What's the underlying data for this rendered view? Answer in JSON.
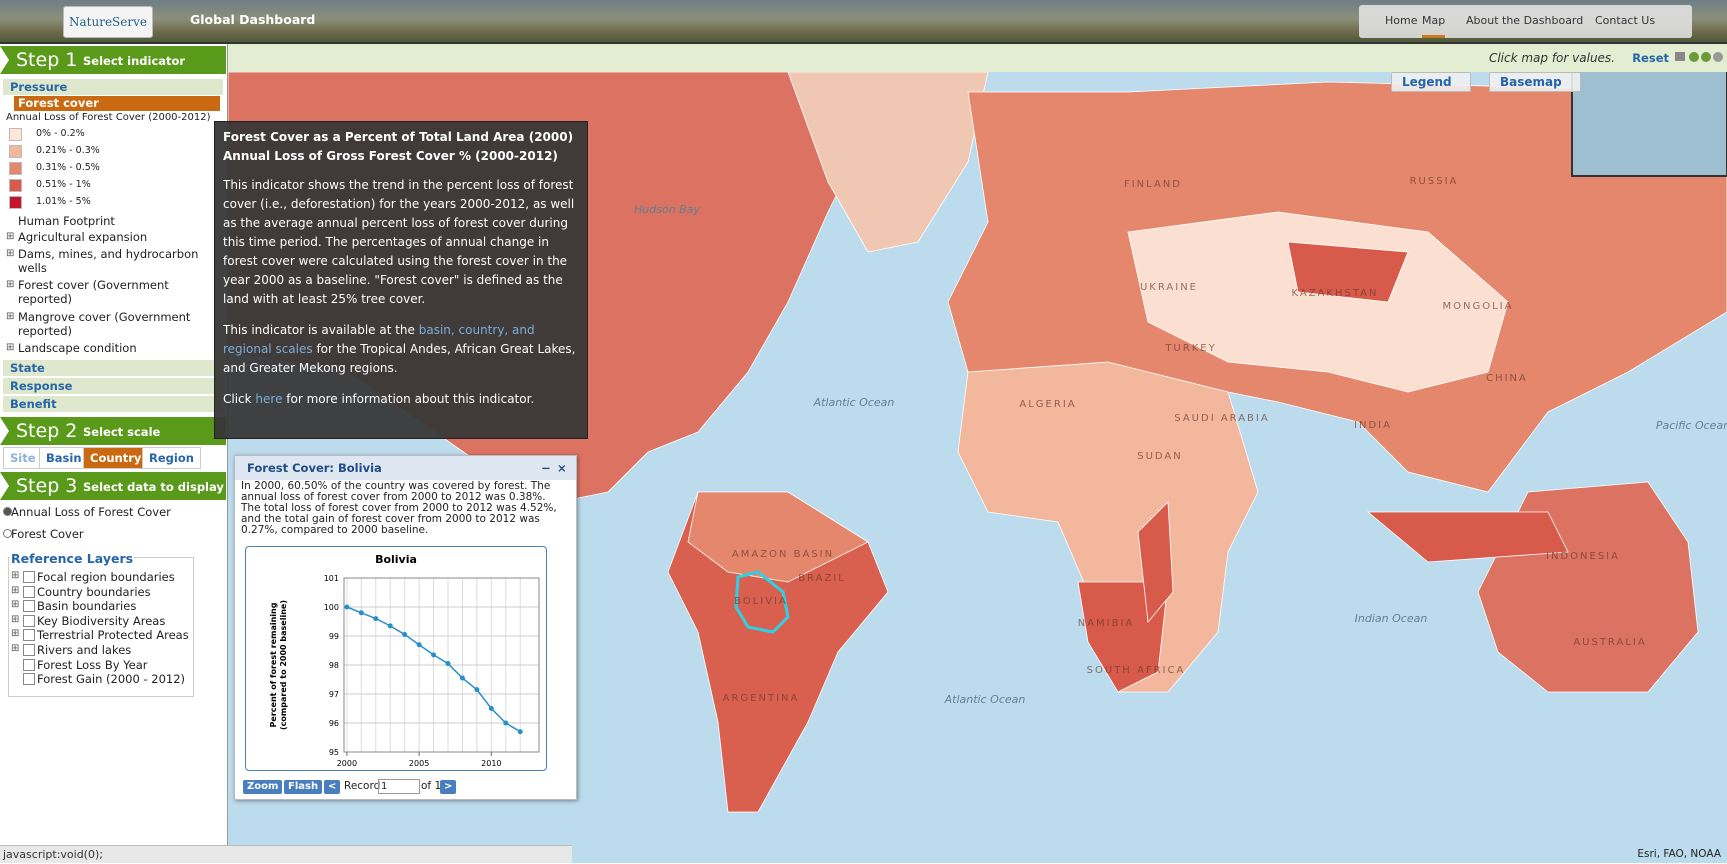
{
  "header": {
    "logo": "NatureServe",
    "title": "Global Dashboard",
    "nav": [
      "Home",
      "Map",
      "About the Dashboard",
      "Contact Us"
    ]
  },
  "toolbar": {
    "hint": "Click map for values.",
    "reset": "Reset"
  },
  "map_controls": {
    "legend": "Legend",
    "basemap": "Basemap"
  },
  "sidebar": {
    "step1": {
      "number": "Step 1",
      "label": "Select indicator"
    },
    "pressure": "Pressure",
    "selected_indicator": "Forest cover",
    "legend_title": "Annual Loss of Forest Cover (2000-2012)",
    "legend_items": [
      {
        "label": "0% - 0.2%",
        "color": "#fde6d8"
      },
      {
        "label": "0.21% - 0.3%",
        "color": "#f2b79c"
      },
      {
        "label": "0.31% - 0.5%",
        "color": "#e5876c"
      },
      {
        "label": "0.51% - 1%",
        "color": "#d85a4b"
      },
      {
        "label": "1.01% - 5%",
        "color": "#c4142b"
      }
    ],
    "indicators": [
      "Human Footprint",
      "Agricultural expansion",
      "Dams, mines, and hydrocarbon wells",
      "Forest cover (Government reported)",
      "Mangrove cover (Government reported)",
      "Landscape condition"
    ],
    "groups": [
      "State",
      "Response",
      "Benefit"
    ],
    "step2": {
      "number": "Step 2",
      "label": "Select scale"
    },
    "scales": [
      {
        "label": "Site",
        "active": false
      },
      {
        "label": "Basin",
        "active": false
      },
      {
        "label": "Country",
        "active": true
      },
      {
        "label": "Region",
        "active": false
      }
    ],
    "step3": {
      "number": "Step 3",
      "label": "Select data to display"
    },
    "display_options": [
      {
        "label": "Annual Loss of Forest Cover",
        "selected": true
      },
      {
        "label": "Forest Cover",
        "selected": false
      }
    ],
    "reference_title": "Reference Layers",
    "reference_layers": [
      {
        "label": "Focal region boundaries",
        "expandable": true
      },
      {
        "label": "Country boundaries",
        "expandable": true
      },
      {
        "label": "Basin boundaries",
        "expandable": true
      },
      {
        "label": "Key Biodiversity Areas",
        "expandable": true
      },
      {
        "label": "Terrestrial Protected Areas",
        "expandable": true
      },
      {
        "label": "Rivers and lakes",
        "expandable": true
      },
      {
        "label": "Forest Loss By Year",
        "expandable": false
      },
      {
        "label": "Forest Gain (2000 - 2012)",
        "expandable": false
      }
    ]
  },
  "tooltip": {
    "title": [
      "Forest Cover as a Percent of Total Land Area (2000)",
      "Annual Loss of Gross Forest Cover % (2000-2012)"
    ],
    "paragraph1": "This indicator shows the trend in the percent loss of forest cover (i.e., deforestation) for the years 2000-2012, as well as the average annual percent loss of forest cover during this time period. The percentages of annual change in forest cover were calculated using the forest cover in the year 2000 as a baseline. \"Forest cover\" is defined as the land with at least 25% tree cover.",
    "paragraph2": [
      "This indicator is available at the ",
      "basin, country, and regional scales",
      " for the Tropical Andes, African Great Lakes, and Greater Mekong regions."
    ],
    "paragraph3": [
      "Click ",
      "here",
      " for more information about this indicator."
    ]
  },
  "popup": {
    "title": "Forest Cover: Bolivia",
    "close": "×",
    "minimize": "−",
    "text": [
      "In 2000, 60.50% of the country was covered by forest. The annual loss of forest cover from 2000 to 2012 was 0.38%.",
      "The total loss of forest cover from 2000 to 2012 was 4.52%, and the total gain of forest cover from 2000 to 2012 was 0.27%, compared to 2000 baseline."
    ],
    "buttons": {
      "zoom": "Zoom",
      "flash": "Flash",
      "prev": "<",
      "record": "Record",
      "record_value": "1",
      "of": "of 1",
      "next": ">"
    }
  },
  "chart_data": {
    "type": "line",
    "title": "Bolivia",
    "ylabel": [
      "Percent of forest remaining",
      "(compared to 2000 baseline)"
    ],
    "x": [
      2000,
      2001,
      2002,
      2003,
      2004,
      2005,
      2006,
      2007,
      2008,
      2009,
      2010,
      2011,
      2012
    ],
    "values": [
      100,
      99.8,
      99.6,
      99.35,
      99.05,
      98.7,
      98.35,
      98.05,
      97.55,
      97.15,
      96.5,
      96,
      95.7
    ],
    "color": "#2a8fc8",
    "xlim": [
      1999.8,
      2013.3
    ],
    "xticks": [
      2000,
      2005,
      2010
    ],
    "ylim": [
      95,
      101
    ],
    "yticks": [
      95,
      96,
      97,
      98,
      99,
      100,
      101
    ],
    "grid": true
  },
  "map_labels": [
    "RUSSIA",
    "CHINA",
    "MONGOLIA",
    "KAZAKHSTAN",
    "INDIA",
    "AUSTRALIA",
    "INDONESIA",
    "BRAZIL",
    "BOLIVIA",
    "ARGENTINA",
    "AMAZON BASIN",
    "ALGERIA",
    "SUDAN",
    "NAMIBIA",
    "SOUTH AFRICA",
    "SAUDI ARABIA",
    "TURKEY",
    "UKRAINE",
    "FINLAND",
    "Atlantic Ocean",
    "Atlantic Ocean",
    "Indian Ocean",
    "Pacific Ocean",
    "Hudson Bay"
  ],
  "status": "javascript:void(0);",
  "attribution": "Esri, FAO, NOAA"
}
